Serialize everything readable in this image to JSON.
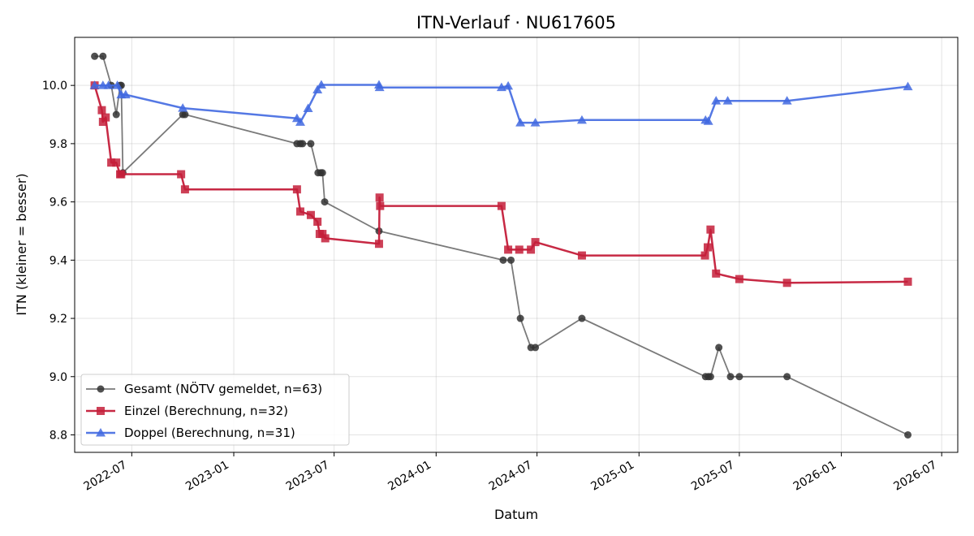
{
  "chart_data": {
    "type": "line",
    "title": "ITN-Verlauf · NU617605",
    "xlabel": "Datum",
    "ylabel": "ITN  (kleiner = besser)",
    "xlim": [
      "2022-03-20",
      "2026-07-30"
    ],
    "ylim": [
      8.74,
      10.165
    ],
    "y_ticks": [
      8.8,
      9.0,
      9.2,
      9.4,
      9.6,
      9.8,
      10.0
    ],
    "y_tick_labels": [
      "8.8",
      "9.0",
      "9.2",
      "9.4",
      "9.6",
      "9.8",
      "10.0"
    ],
    "x_ticks": [
      "2022-07-01",
      "2023-01-01",
      "2023-07-01",
      "2024-01-01",
      "2024-07-01",
      "2025-01-01",
      "2025-07-01",
      "2026-01-01",
      "2026-07-01"
    ],
    "x_tick_labels": [
      "2022-07",
      "2023-01",
      "2023-07",
      "2024-01",
      "2024-07",
      "2025-01",
      "2025-07",
      "2026-01",
      "2026-07"
    ],
    "grid": true,
    "legend_position": "lower-left",
    "series": [
      {
        "name": "Gesamt (NÖTV gemeldet, n=63)",
        "color": "#333333",
        "marker": "circle",
        "x": [
          "2022-04-25",
          "2022-05-10",
          "2022-05-25",
          "2022-06-03",
          "2022-06-10",
          "2022-06-12",
          "2022-06-15",
          "2022-10-01",
          "2022-10-05",
          "2023-04-25",
          "2023-05-01",
          "2023-05-05",
          "2023-05-20",
          "2023-06-02",
          "2023-06-07",
          "2023-06-10",
          "2023-06-14",
          "2023-09-20",
          "2024-05-01",
          "2024-05-15",
          "2024-06-01",
          "2024-06-20",
          "2024-06-28",
          "2024-09-20",
          "2025-05-01",
          "2025-05-06",
          "2025-05-10",
          "2025-05-25",
          "2025-06-15",
          "2025-07-01",
          "2025-09-25",
          "2026-05-01"
        ],
        "y": [
          10.1,
          10.1,
          10.0,
          9.9,
          10.0,
          10.0,
          9.7,
          9.9,
          9.9,
          9.8,
          9.8,
          9.8,
          9.8,
          9.7,
          9.7,
          9.7,
          9.6,
          9.5,
          9.4,
          9.4,
          9.2,
          9.1,
          9.1,
          9.2,
          9.0,
          9.0,
          9.0,
          9.1,
          9.0,
          9.0,
          9.0,
          8.8
        ]
      },
      {
        "name": "Einzel (Berechnung, n=32)",
        "color": "#c41e3a",
        "marker": "square",
        "x": [
          "2022-04-25",
          "2022-05-08",
          "2022-05-10",
          "2022-05-15",
          "2022-05-25",
          "2022-06-03",
          "2022-06-10",
          "2022-06-12",
          "2022-09-28",
          "2022-10-05",
          "2023-04-25",
          "2023-05-01",
          "2023-05-20",
          "2023-06-01",
          "2023-06-05",
          "2023-06-10",
          "2023-06-15",
          "2023-09-20",
          "2023-09-21",
          "2023-09-22",
          "2024-04-28",
          "2024-05-10",
          "2024-05-30",
          "2024-06-20",
          "2024-06-28",
          "2024-09-20",
          "2025-04-30",
          "2025-05-05",
          "2025-05-10",
          "2025-05-20",
          "2025-07-01",
          "2025-09-25",
          "2026-05-01"
        ],
        "y": [
          10.0,
          9.915,
          9.875,
          9.89,
          9.735,
          9.735,
          9.695,
          9.695,
          9.695,
          9.643,
          9.643,
          9.567,
          9.555,
          9.532,
          9.49,
          9.49,
          9.475,
          9.456,
          9.615,
          9.586,
          9.586,
          9.436,
          9.436,
          9.436,
          9.462,
          9.416,
          9.416,
          9.444,
          9.505,
          9.354,
          9.335,
          9.322,
          9.326
        ]
      },
      {
        "name": "Doppel (Berechnung, n=31)",
        "color": "#4169e1",
        "marker": "triangle",
        "x": [
          "2022-04-25",
          "2022-05-10",
          "2022-05-20",
          "2022-06-05",
          "2022-06-12",
          "2022-06-20",
          "2022-10-01",
          "2023-04-25",
          "2023-05-01",
          "2023-05-15",
          "2023-06-01",
          "2023-06-08",
          "2023-09-20",
          "2023-09-21",
          "2024-04-28",
          "2024-05-10",
          "2024-06-01",
          "2024-06-28",
          "2024-09-20",
          "2025-05-01",
          "2025-05-06",
          "2025-05-20",
          "2025-06-10",
          "2025-09-25",
          "2026-05-01"
        ],
        "y": [
          10.0,
          10.0,
          10.0,
          10.0,
          9.968,
          9.968,
          9.922,
          9.887,
          9.874,
          9.921,
          9.985,
          10.002,
          10.002,
          9.993,
          9.993,
          9.998,
          9.872,
          9.872,
          9.881,
          9.881,
          9.877,
          9.947,
          9.947,
          9.947,
          9.996
        ]
      }
    ]
  }
}
